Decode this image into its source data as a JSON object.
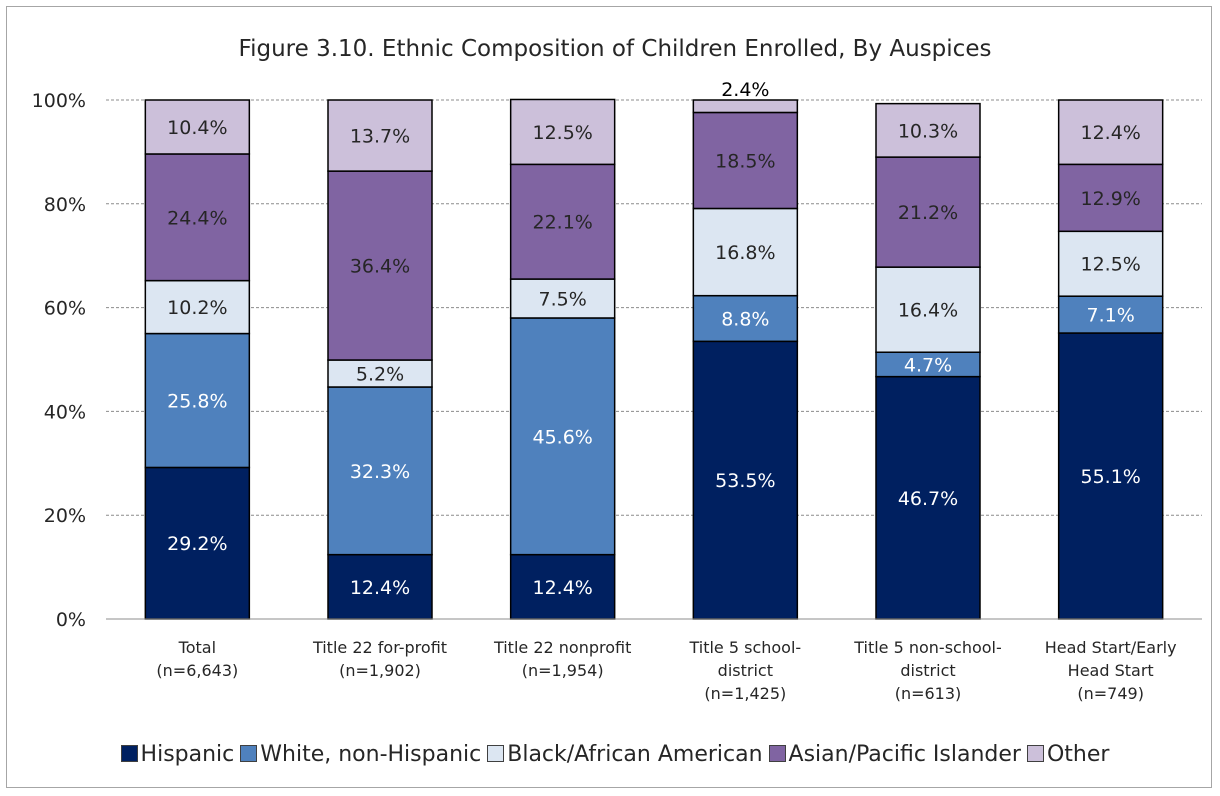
{
  "chart_data": {
    "type": "bar",
    "stacked": true,
    "title": "Figure 3.10. Ethnic Composition of Children Enrolled, By Auspices",
    "categories": [
      [
        "Total",
        "(n=6,643)"
      ],
      [
        "Title 22 for-profit",
        "(n=1,902)"
      ],
      [
        "Title 22 nonprofit",
        "(n=1,954)"
      ],
      [
        "Title 5 school-",
        "district",
        "(n=1,425)"
      ],
      [
        "Title 5 non-school-",
        "district",
        "(n=613)"
      ],
      [
        "Head Start/Early",
        "Head Start",
        "(n=749)"
      ]
    ],
    "yticks": [
      "0%",
      "20%",
      "40%",
      "60%",
      "80%",
      "100%"
    ],
    "ylim": [
      0,
      100
    ],
    "grid": true,
    "legend_position": "bottom",
    "series": [
      {
        "name": "Hispanic",
        "color": "#002060",
        "label_color": "#ffffff",
        "values": [
          29.2,
          12.4,
          12.4,
          53.5,
          46.7,
          55.1
        ],
        "labels": [
          "29.2%",
          "12.4%",
          "12.4%",
          "53.5%",
          "46.7%",
          "55.1%"
        ]
      },
      {
        "name": "White, non-Hispanic",
        "color": "#4f81bd",
        "label_color": "#ffffff",
        "values": [
          25.8,
          32.3,
          45.6,
          8.8,
          4.7,
          7.1
        ],
        "labels": [
          "25.8%",
          "32.3%",
          "45.6%",
          "8.8%",
          "4.7%",
          "7.1%"
        ]
      },
      {
        "name": "Black/African American",
        "color": "#dce6f2",
        "label_color": "#262626",
        "values": [
          10.2,
          5.2,
          7.5,
          16.8,
          16.4,
          12.5
        ],
        "labels": [
          "10.2%",
          "5.2%",
          "7.5%",
          "16.8%",
          "16.4%",
          "12.5%"
        ]
      },
      {
        "name": "Asian/Pacific Islander",
        "color": "#8064a2",
        "label_color": "#262626",
        "values": [
          24.4,
          36.4,
          22.1,
          18.5,
          21.2,
          12.9
        ],
        "labels": [
          "24.4%",
          "36.4%",
          "22.1%",
          "18.5%",
          "21.2%",
          "12.9%"
        ]
      },
      {
        "name": "Other",
        "color": "#ccc0da",
        "label_color": "#262626",
        "values": [
          10.4,
          13.7,
          12.5,
          2.4,
          10.3,
          12.4
        ],
        "labels": [
          "10.4%",
          "13.7%",
          "12.5%",
          "2.4%",
          "10.3%",
          "12.4%"
        ]
      }
    ]
  }
}
